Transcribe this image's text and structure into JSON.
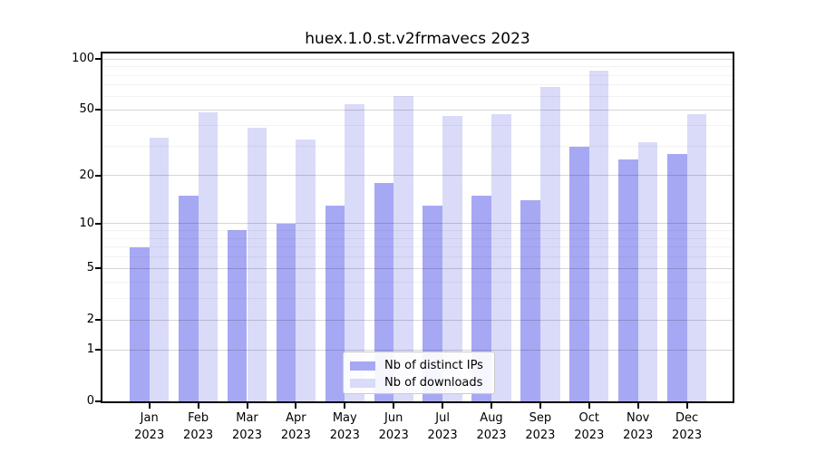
{
  "title": "huex.1.0.st.v2frmavecs 2023",
  "chart_data": {
    "type": "bar",
    "title": "huex.1.0.st.v2frmavecs 2023",
    "categories": [
      {
        "month": "Jan",
        "year": "2023"
      },
      {
        "month": "Feb",
        "year": "2023"
      },
      {
        "month": "Mar",
        "year": "2023"
      },
      {
        "month": "Apr",
        "year": "2023"
      },
      {
        "month": "May",
        "year": "2023"
      },
      {
        "month": "Jun",
        "year": "2023"
      },
      {
        "month": "Jul",
        "year": "2023"
      },
      {
        "month": "Aug",
        "year": "2023"
      },
      {
        "month": "Sep",
        "year": "2023"
      },
      {
        "month": "Oct",
        "year": "2023"
      },
      {
        "month": "Nov",
        "year": "2023"
      },
      {
        "month": "Dec",
        "year": "2023"
      }
    ],
    "series": [
      {
        "name": "Nb of distinct IPs",
        "color": "#a6a8f4",
        "values": [
          7,
          15,
          9,
          10,
          13,
          18,
          13,
          15,
          14,
          30,
          25,
          27
        ]
      },
      {
        "name": "Nb of downloads",
        "color": "#dadbf8",
        "values": [
          34,
          48,
          39,
          33,
          54,
          60,
          46,
          47,
          68,
          85,
          32,
          47
        ]
      }
    ],
    "y_scale": "log(1+v)",
    "ylim": [
      0,
      109
    ],
    "y_ticks": [
      100,
      50,
      20,
      10,
      5,
      2,
      1,
      0
    ],
    "y_minor_gridlines": [
      3,
      4,
      6,
      7,
      8,
      9,
      30,
      40,
      60,
      70,
      80,
      90
    ],
    "grid": true,
    "legend_position": "inside-bottom-center"
  }
}
